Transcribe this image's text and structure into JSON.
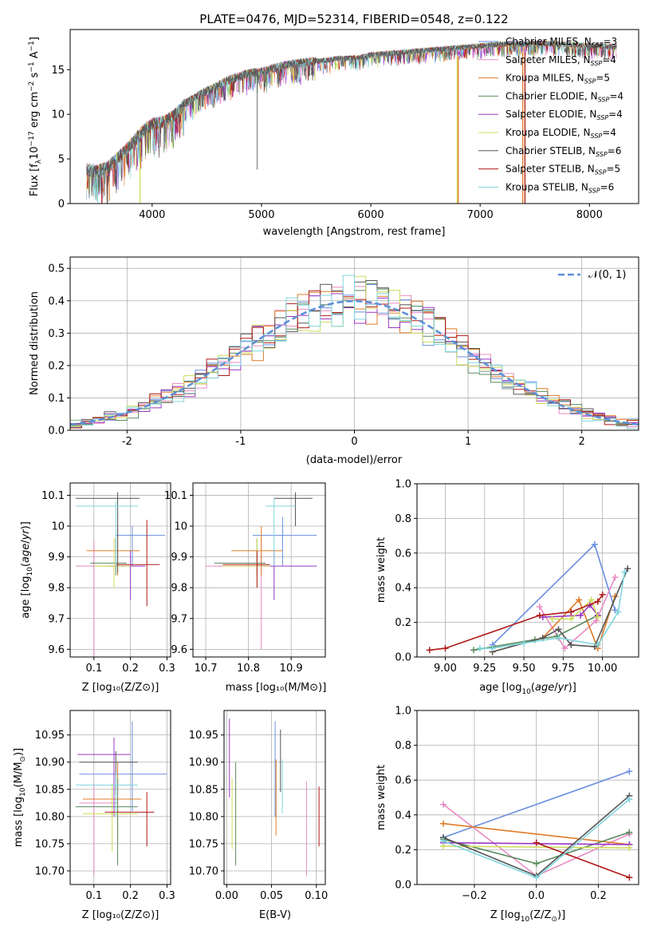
{
  "colors": {
    "chabrier_miles": "#6a8ee0",
    "salpeter_miles": "#e78ac3",
    "kroupa_miles": "#e07b28",
    "chabrier_elodie": "#5a8a5e",
    "salpeter_elodie": "#9b36c4",
    "kroupa_elodie": "#cfdc5a",
    "chabrier_stelib": "#555555",
    "salpeter_stelib": "#b01a1a",
    "kroupa_stelib": "#7fd6de",
    "normal": "#5b8fd6"
  },
  "chart_data": [
    {
      "id": "spectrum",
      "type": "line",
      "title": "PLATE=0476, MJD=52314, FIBERID=0548, z=0.122",
      "xlabel": "wavelength [Angstrom, rest frame]",
      "ylabel": "Flux [fλ10⁻¹⁷ erg cm⁻² s⁻¹ A⁻¹]",
      "xlim": [
        3250,
        8450
      ],
      "ylim": [
        0,
        19.5
      ],
      "xticks": [
        4000,
        5000,
        6000,
        7000,
        8000
      ],
      "yticks": [
        0,
        5,
        10,
        15
      ],
      "grid": false,
      "legend_position": "top-right",
      "envelope": {
        "x": [
          3400,
          3500,
          3600,
          3700,
          3800,
          3900,
          4000,
          4100,
          4200,
          4300,
          4400,
          4500,
          4600,
          4700,
          4800,
          4900,
          5000,
          5100,
          5200,
          5300,
          5400,
          5500,
          5600,
          5700,
          5800,
          5900,
          6000,
          6100,
          6200,
          6300,
          6400,
          6500,
          6600,
          6700,
          6800,
          6900,
          7000,
          7100,
          7200,
          7300,
          7400,
          7500,
          7600,
          7700,
          7800,
          7900,
          8000,
          8100,
          8200,
          8250
        ],
        "y": [
          3.9,
          3.7,
          4.2,
          5.3,
          6.6,
          8.0,
          9.0,
          9.2,
          9.9,
          11.2,
          12.0,
          12.7,
          13.3,
          13.9,
          14.3,
          14.7,
          14.8,
          15.2,
          15.5,
          15.7,
          15.9,
          16.0,
          16.1,
          16.3,
          16.3,
          16.4,
          16.7,
          16.8,
          16.9,
          17.0,
          17.1,
          17.2,
          17.3,
          17.4,
          17.5,
          17.6,
          17.7,
          17.8,
          17.9,
          18.0,
          17.9,
          18.0,
          18.0,
          17.9,
          17.9,
          17.8,
          17.7,
          17.7,
          17.6,
          17.6
        ]
      },
      "series": [
        {
          "name": "Chabrier MILES, N_SSP=3",
          "color_key": "chabrier_miles"
        },
        {
          "name": "Salpeter MILES, N_SSP=4",
          "color_key": "salpeter_miles"
        },
        {
          "name": "Kroupa MILES, N_SSP=5",
          "color_key": "kroupa_miles"
        },
        {
          "name": "Chabrier ELODIE, N_SSP=4",
          "color_key": "chabrier_elodie"
        },
        {
          "name": "Salpeter ELODIE, N_SSP=4",
          "color_key": "salpeter_elodie"
        },
        {
          "name": "Kroupa ELODIE, N_SSP=4",
          "color_key": "kroupa_elodie"
        },
        {
          "name": "Chabrier STELIB, N_SSP=6",
          "color_key": "chabrier_stelib"
        },
        {
          "name": "Salpeter STELIB, N_SSP=5",
          "color_key": "salpeter_stelib"
        },
        {
          "name": "Kroupa STELIB, N_SSP=6",
          "color_key": "kroupa_stelib"
        }
      ],
      "dropouts": [
        {
          "x": 3540,
          "color_key": "salpeter_stelib"
        },
        {
          "x": 3590,
          "color_key": "chabrier_stelib"
        },
        {
          "x": 3890,
          "color_key": "kroupa_elodie"
        },
        {
          "x": 6790,
          "color_key": "kroupa_elodie"
        },
        {
          "x": 6800,
          "color_key": "kroupa_miles"
        },
        {
          "x": 7390,
          "color_key": "kroupa_miles"
        },
        {
          "x": 7410,
          "color_key": "salpeter_stelib"
        }
      ]
    },
    {
      "id": "residuals",
      "type": "histogram",
      "xlabel": "(data-model)/error",
      "ylabel": "Normed distribution",
      "xlim": [
        -2.5,
        2.5
      ],
      "ylim": [
        0,
        0.535
      ],
      "xticks": [
        -2,
        -1,
        0,
        1,
        2
      ],
      "yticks": [
        0.0,
        0.1,
        0.2,
        0.3,
        0.4,
        0.5
      ],
      "grid": true,
      "legend_position": "top-right",
      "legend_label": "𝒩(0, 1)",
      "bin_width": 0.1,
      "bin_start": -2.5
    },
    {
      "id": "z-age",
      "type": "errorbar",
      "xlabel": "Z [log₁₀(Z/Z⊙)]",
      "ylabel": "age  [log₁₀(age/yr)]",
      "xlim": [
        0.035,
        0.31
      ],
      "ylim": [
        9.575,
        10.14
      ],
      "xticks": [
        0.1,
        0.2,
        0.3
      ],
      "yticks": [
        9.6,
        9.7,
        9.8,
        9.9,
        10.0,
        10.1
      ],
      "grid": true,
      "points": [
        {
          "color_key": "chabrier_miles",
          "x": 0.205,
          "xlo": 0.16,
          "xhi": 0.295,
          "y": 9.97,
          "ylo": 9.87,
          "yhi": 10.0
        },
        {
          "color_key": "salpeter_miles",
          "x": 0.1,
          "xlo": 0.05,
          "xhi": 0.165,
          "y": 9.87,
          "ylo": 9.57,
          "yhi": 9.95
        },
        {
          "color_key": "kroupa_miles",
          "x": 0.165,
          "xlo": 0.08,
          "xhi": 0.225,
          "y": 9.92,
          "ylo": 9.84,
          "yhi": 10.0
        },
        {
          "color_key": "chabrier_elodie",
          "x": 0.16,
          "xlo": 0.09,
          "xhi": 0.19,
          "y": 9.88,
          "ylo": 9.84,
          "yhi": 9.96
        },
        {
          "color_key": "salpeter_elodie",
          "x": 0.2,
          "xlo": 0.14,
          "xhi": 0.24,
          "y": 9.87,
          "ylo": 9.76,
          "yhi": 9.92
        },
        {
          "color_key": "kroupa_elodie",
          "x": 0.155,
          "xlo": 0.1,
          "xhi": 0.2,
          "y": 9.87,
          "ylo": 9.8,
          "yhi": 9.96
        },
        {
          "color_key": "chabrier_stelib",
          "x": 0.165,
          "xlo": 0.05,
          "xhi": 0.225,
          "y": 10.09,
          "ylo": 9.85,
          "yhi": 10.11
        },
        {
          "color_key": "salpeter_stelib",
          "x": 0.245,
          "xlo": 0.16,
          "xhi": 0.28,
          "y": 9.875,
          "ylo": 9.74,
          "yhi": 10.02
        },
        {
          "color_key": "kroupa_stelib",
          "x": 0.16,
          "xlo": 0.05,
          "xhi": 0.22,
          "y": 10.065,
          "ylo": 9.87,
          "yhi": 10.08
        }
      ]
    },
    {
      "id": "mass-age",
      "type": "errorbar",
      "xlabel": "mass [log₁₀(M/M⊙)]",
      "ylabel": "",
      "xlim": [
        10.67,
        10.98
      ],
      "ylim": [
        9.575,
        10.14
      ],
      "xticks": [
        10.7,
        10.8,
        10.9
      ],
      "yticks": [
        9.6,
        9.7,
        9.8,
        9.9,
        10.0,
        10.1
      ],
      "grid": true,
      "points": [
        {
          "color_key": "chabrier_miles",
          "x": 10.88,
          "xlo": 10.81,
          "xhi": 10.96,
          "y": 9.97,
          "ylo": 9.87,
          "yhi": 10.03
        },
        {
          "color_key": "salpeter_miles",
          "x": 10.83,
          "xlo": 10.7,
          "xhi": 10.85,
          "y": 9.87,
          "ylo": 9.6,
          "yhi": 9.96
        },
        {
          "color_key": "kroupa_miles",
          "x": 10.83,
          "xlo": 10.76,
          "xhi": 10.88,
          "y": 9.92,
          "ylo": 9.84,
          "yhi": 10.0
        },
        {
          "color_key": "chabrier_elodie",
          "x": 10.82,
          "xlo": 10.72,
          "xhi": 10.84,
          "y": 9.88,
          "ylo": 9.84,
          "yhi": 9.96
        },
        {
          "color_key": "salpeter_elodie",
          "x": 10.86,
          "xlo": 10.82,
          "xhi": 10.96,
          "y": 9.87,
          "ylo": 9.76,
          "yhi": 9.92
        },
        {
          "color_key": "kroupa_elodie",
          "x": 10.82,
          "xlo": 10.74,
          "xhi": 10.85,
          "y": 9.87,
          "ylo": 9.8,
          "yhi": 9.96
        },
        {
          "color_key": "chabrier_stelib",
          "x": 10.91,
          "xlo": 10.86,
          "xhi": 10.95,
          "y": 10.09,
          "ylo": 10.0,
          "yhi": 10.11
        },
        {
          "color_key": "salpeter_stelib",
          "x": 10.82,
          "xlo": 10.74,
          "xhi": 10.85,
          "y": 9.875,
          "ylo": 9.8,
          "yhi": 9.92
        },
        {
          "color_key": "kroupa_stelib",
          "x": 10.86,
          "xlo": 10.84,
          "xhi": 10.91,
          "y": 10.065,
          "ylo": 9.87,
          "yhi": 10.09
        }
      ]
    },
    {
      "id": "age-weight",
      "type": "line",
      "xlabel": "age  [log₁₀(age/yr)]",
      "ylabel": "mass weight",
      "xlim": [
        8.82,
        10.23
      ],
      "ylim": [
        0,
        1.0
      ],
      "xticks": [
        9.0,
        9.25,
        9.5,
        9.75,
        10.0
      ],
      "xticklabels": [
        "9.00",
        "9.25",
        "9.50",
        "9.75",
        "10.00"
      ],
      "yticks": [
        0.0,
        0.2,
        0.4,
        0.6,
        0.8,
        1.0
      ],
      "grid": true,
      "series": [
        {
          "color_key": "chabrier_miles",
          "x": [
            9.3,
            9.95,
            10.08
          ],
          "y": [
            0.07,
            0.65,
            0.27
          ]
        },
        {
          "color_key": "salpeter_miles",
          "x": [
            9.6,
            9.76,
            9.96,
            10.08
          ],
          "y": [
            0.29,
            0.05,
            0.21,
            0.46
          ]
        },
        {
          "color_key": "kroupa_miles",
          "x": [
            9.3,
            9.62,
            9.85,
            9.97,
            10.08
          ],
          "y": [
            0.03,
            0.11,
            0.33,
            0.05,
            0.35
          ]
        },
        {
          "color_key": "chabrier_elodie",
          "x": [
            9.18,
            9.57,
            9.71,
            9.97
          ],
          "y": [
            0.04,
            0.1,
            0.12,
            0.24
          ]
        },
        {
          "color_key": "salpeter_elodie",
          "x": [
            9.62,
            9.86,
            9.92,
            9.97
          ],
          "y": [
            0.23,
            0.24,
            0.3,
            0.24
          ]
        },
        {
          "color_key": "kroupa_elodie",
          "x": [
            9.68,
            9.8,
            9.93,
            9.97
          ],
          "y": [
            0.22,
            0.22,
            0.33,
            0.23
          ]
        },
        {
          "color_key": "chabrier_stelib",
          "x": [
            9.3,
            9.62,
            9.72,
            9.8,
            9.95,
            10.16
          ],
          "y": [
            0.03,
            0.11,
            0.16,
            0.07,
            0.06,
            0.51
          ]
        },
        {
          "color_key": "salpeter_stelib",
          "x": [
            8.9,
            9.0,
            9.6,
            9.8,
            9.97,
            10.0
          ],
          "y": [
            0.04,
            0.05,
            0.24,
            0.26,
            0.32,
            0.36
          ]
        },
        {
          "color_key": "kroupa_stelib",
          "x": [
            9.22,
            9.3,
            9.5,
            9.72,
            9.97,
            10.1,
            10.14
          ],
          "y": [
            0.05,
            0.05,
            0.08,
            0.11,
            0.07,
            0.26,
            0.49
          ]
        }
      ]
    },
    {
      "id": "z-mass",
      "type": "errorbar",
      "xlabel": "Z [log₁₀(Z/Z⊙)]",
      "ylabel": "mass [log₁₀(M/M⊙)]",
      "xlim": [
        0.035,
        0.31
      ],
      "ylim": [
        10.675,
        10.995
      ],
      "xticks": [
        0.1,
        0.2,
        0.3
      ],
      "yticks": [
        10.7,
        10.75,
        10.8,
        10.85,
        10.9,
        10.95
      ],
      "yticklabels": [
        "10.70",
        "10.75",
        "10.80",
        "10.85",
        "10.90",
        "10.95"
      ],
      "grid": true,
      "points": [
        {
          "color_key": "chabrier_miles",
          "x": 0.205,
          "xlo": 0.06,
          "xhi": 0.3,
          "y": 10.878,
          "ylo": 10.81,
          "yhi": 10.975
        },
        {
          "color_key": "salpeter_miles",
          "x": 0.1,
          "xlo": 0.06,
          "xhi": 0.165,
          "y": 10.825,
          "ylo": 10.69,
          "yhi": 10.86
        },
        {
          "color_key": "kroupa_miles",
          "x": 0.165,
          "xlo": 0.07,
          "xhi": 0.23,
          "y": 10.832,
          "ylo": 10.76,
          "yhi": 10.9
        },
        {
          "color_key": "chabrier_elodie",
          "x": 0.165,
          "xlo": 0.05,
          "xhi": 0.22,
          "y": 10.818,
          "ylo": 10.71,
          "yhi": 10.87
        },
        {
          "color_key": "salpeter_elodie",
          "x": 0.155,
          "xlo": 0.055,
          "xhi": 0.2,
          "y": 10.914,
          "ylo": 10.8,
          "yhi": 10.945
        },
        {
          "color_key": "kroupa_elodie",
          "x": 0.15,
          "xlo": 0.07,
          "xhi": 0.22,
          "y": 10.805,
          "ylo": 10.735,
          "yhi": 10.86
        },
        {
          "color_key": "chabrier_stelib",
          "x": 0.16,
          "xlo": 0.06,
          "xhi": 0.22,
          "y": 10.9,
          "ylo": 10.84,
          "yhi": 10.92
        },
        {
          "color_key": "salpeter_stelib",
          "x": 0.245,
          "xlo": 0.13,
          "xhi": 0.265,
          "y": 10.808,
          "ylo": 10.745,
          "yhi": 10.845
        },
        {
          "color_key": "kroupa_stelib",
          "x": 0.16,
          "xlo": 0.05,
          "xhi": 0.22,
          "y": 10.858,
          "ylo": 10.8,
          "yhi": 10.88
        }
      ]
    },
    {
      "id": "ebv-mass",
      "type": "errorbar",
      "xlabel": "E(B-V)",
      "ylabel": "",
      "xlim": [
        -0.003,
        0.11
      ],
      "ylim": [
        10.675,
        10.995
      ],
      "xticks": [
        0.0,
        0.05,
        0.1
      ],
      "xticklabels": [
        "0.00",
        "0.05",
        "0.10"
      ],
      "yticks": [
        10.7,
        10.75,
        10.8,
        10.85,
        10.9,
        10.95
      ],
      "yticklabels": [
        "10.70",
        "10.75",
        "10.80",
        "10.85",
        "10.90",
        "10.95"
      ],
      "grid": true,
      "points": [
        {
          "color_key": "chabrier_miles",
          "x": 0.054,
          "y": 10.88,
          "ylo": 10.8,
          "yhi": 10.975
        },
        {
          "color_key": "salpeter_miles",
          "x": 0.089,
          "y": 10.78,
          "ylo": 10.69,
          "yhi": 10.865
        },
        {
          "color_key": "kroupa_miles",
          "x": 0.055,
          "y": 10.83,
          "ylo": 10.765,
          "yhi": 10.905
        },
        {
          "color_key": "chabrier_elodie",
          "x": 0.01,
          "y": 10.8,
          "ylo": 10.71,
          "yhi": 10.9
        },
        {
          "color_key": "salpeter_elodie",
          "x": 0.003,
          "y": 10.91,
          "ylo": 10.835,
          "yhi": 10.98
        },
        {
          "color_key": "kroupa_elodie",
          "x": 0.006,
          "y": 10.8,
          "ylo": 10.74,
          "yhi": 10.87
        },
        {
          "color_key": "chabrier_stelib",
          "x": 0.06,
          "y": 10.9,
          "ylo": 10.845,
          "yhi": 10.96
        },
        {
          "color_key": "salpeter_stelib",
          "x": 0.103,
          "y": 10.79,
          "ylo": 10.745,
          "yhi": 10.855
        },
        {
          "color_key": "kroupa_stelib",
          "x": 0.062,
          "y": 10.855,
          "ylo": 10.805,
          "yhi": 10.905
        }
      ]
    },
    {
      "id": "z-weight",
      "type": "line",
      "xlabel": "Z [log₁₀(Z/Z⊙)]",
      "ylabel": "mass weight",
      "xlim": [
        -0.385,
        0.33
      ],
      "ylim": [
        0,
        1.0
      ],
      "xticks": [
        -0.2,
        0.0,
        0.2
      ],
      "xticklabels": [
        "−0.2",
        "0.0",
        "0.2"
      ],
      "yticks": [
        0.0,
        0.2,
        0.4,
        0.6,
        0.8,
        1.0
      ],
      "grid": true,
      "series": [
        {
          "color_key": "chabrier_miles",
          "x": [
            -0.3,
            0.3
          ],
          "y": [
            0.27,
            0.65
          ]
        },
        {
          "color_key": "salpeter_miles",
          "x": [
            -0.3,
            0.0,
            0.3
          ],
          "y": [
            0.46,
            0.05,
            0.29
          ]
        },
        {
          "color_key": "kroupa_miles",
          "x": [
            -0.3,
            0.3
          ],
          "y": [
            0.35,
            0.23
          ]
        },
        {
          "color_key": "chabrier_elodie",
          "x": [
            -0.3,
            0.0,
            0.3
          ],
          "y": [
            0.26,
            0.12,
            0.3
          ]
        },
        {
          "color_key": "salpeter_elodie",
          "x": [
            -0.3,
            0.3
          ],
          "y": [
            0.24,
            0.23
          ]
        },
        {
          "color_key": "kroupa_elodie",
          "x": [
            -0.3,
            0.3
          ],
          "y": [
            0.22,
            0.21
          ]
        },
        {
          "color_key": "chabrier_stelib",
          "x": [
            -0.3,
            0.0,
            0.3
          ],
          "y": [
            0.27,
            0.05,
            0.51
          ]
        },
        {
          "color_key": "salpeter_stelib",
          "x": [
            0.0,
            0.3
          ],
          "y": [
            0.24,
            0.04
          ]
        },
        {
          "color_key": "kroupa_stelib",
          "x": [
            -0.3,
            0.0,
            0.3
          ],
          "y": [
            0.25,
            0.04,
            0.49
          ]
        }
      ]
    }
  ]
}
